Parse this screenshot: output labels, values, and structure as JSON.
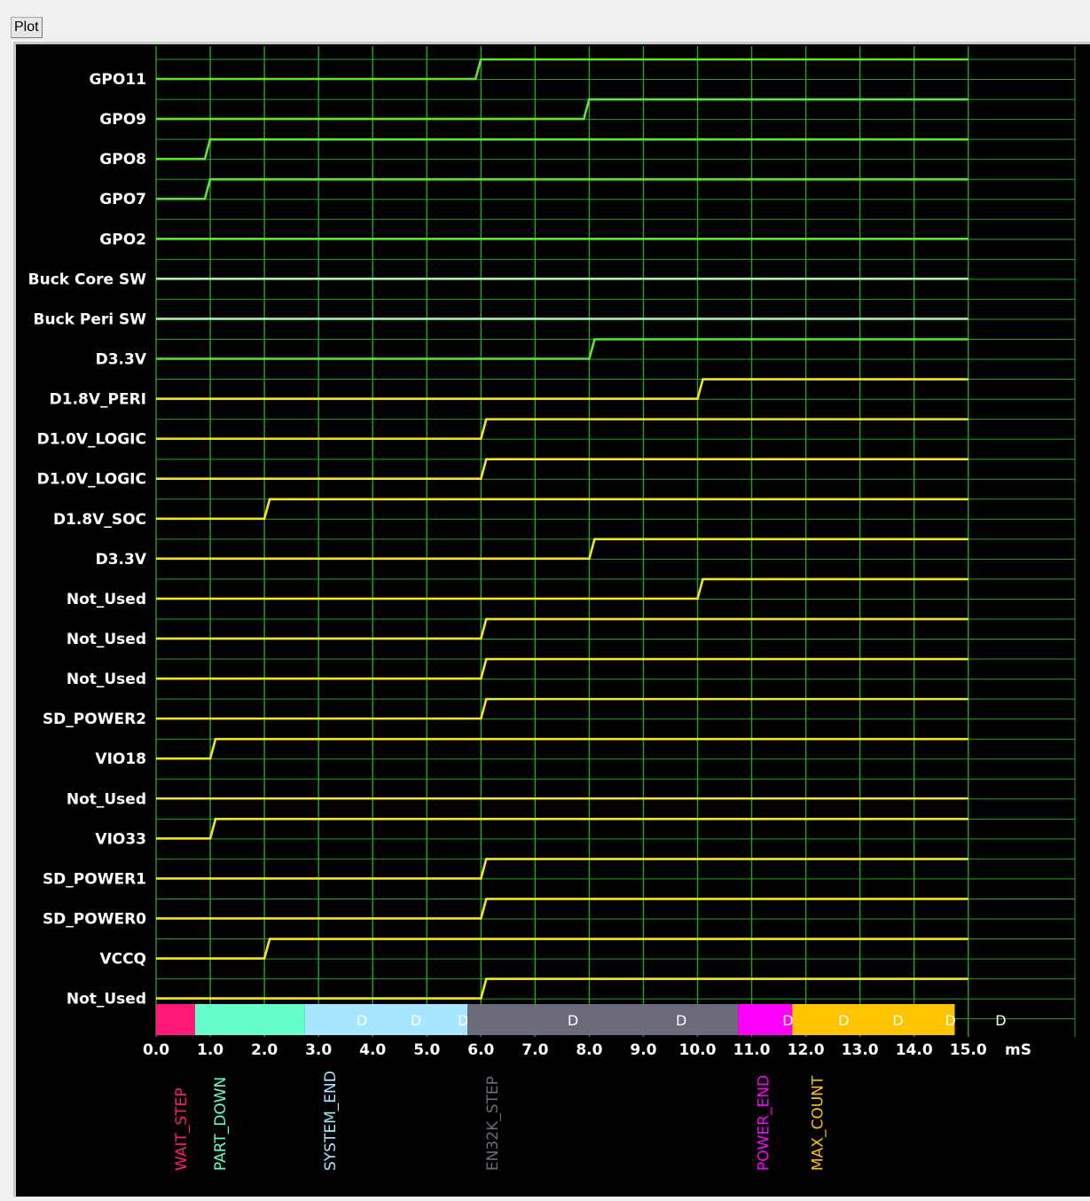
{
  "tab": {
    "label": "Plot"
  },
  "chart_data": {
    "type": "timing",
    "x": {
      "ticks": [
        0.0,
        1.0,
        2.0,
        3.0,
        4.0,
        5.0,
        6.0,
        7.0,
        8.0,
        9.0,
        10.0,
        11.0,
        12.0,
        13.0,
        14.0,
        15.0
      ],
      "unit": "mS",
      "range": [
        0,
        16
      ]
    },
    "grid": true,
    "colors": {
      "background": "#000000",
      "grid": "#1fa81f",
      "gpo": "#5ce62e",
      "buck": "#a6f2a6",
      "rail": "#f2e61f"
    },
    "signals": [
      {
        "name": "GPO11",
        "group": "gpo",
        "rise": 5.9
      },
      {
        "name": "GPO9",
        "group": "gpo",
        "rise": 7.9
      },
      {
        "name": "GPO8",
        "group": "gpo",
        "rise": 0.9
      },
      {
        "name": "GPO7",
        "group": "gpo",
        "rise": 0.9
      },
      {
        "name": "GPO2",
        "group": "gpo",
        "rise": null
      },
      {
        "name": "Buck Core SW",
        "group": "buck",
        "rise": null
      },
      {
        "name": "Buck Peri SW",
        "group": "buck",
        "rise": null
      },
      {
        "name": "D3.3V",
        "group": "gpo",
        "rise": 8.0
      },
      {
        "name": "D1.8V_PERI",
        "group": "rail",
        "rise": 10.0
      },
      {
        "name": "D1.0V_LOGIC",
        "group": "rail",
        "rise": 6.0
      },
      {
        "name": "D1.0V_LOGIC",
        "group": "rail",
        "rise": 6.0
      },
      {
        "name": "D1.8V_SOC",
        "group": "rail",
        "rise": 2.0
      },
      {
        "name": "D3.3V",
        "group": "rail",
        "rise": 8.0
      },
      {
        "name": "Not_Used",
        "group": "rail",
        "rise": 10.0
      },
      {
        "name": "Not_Used",
        "group": "rail",
        "rise": 6.0
      },
      {
        "name": "Not_Used",
        "group": "rail",
        "rise": 6.0
      },
      {
        "name": "SD_POWER2",
        "group": "rail",
        "rise": 6.0
      },
      {
        "name": "VIO18",
        "group": "rail",
        "rise": 1.0
      },
      {
        "name": "Not_Used",
        "group": "rail",
        "rise": null
      },
      {
        "name": "VIO33",
        "group": "rail",
        "rise": 1.0
      },
      {
        "name": "SD_POWER1",
        "group": "rail",
        "rise": 6.0
      },
      {
        "name": "SD_POWER0",
        "group": "rail",
        "rise": 6.0
      },
      {
        "name": "VCCQ",
        "group": "rail",
        "rise": 2.0
      },
      {
        "name": "Not_Used",
        "group": "rail",
        "rise": 6.0
      }
    ],
    "phases": [
      {
        "name": "WAIT_STEP",
        "start": 0.0,
        "end": 0.72,
        "color": "#ff1a7a",
        "marks": []
      },
      {
        "name": "PART_DOWN",
        "start": 0.72,
        "end": 2.75,
        "color": "#66ffcc",
        "marks": []
      },
      {
        "name": "SYSTEM_END",
        "start": 2.75,
        "end": 5.75,
        "color": "#a6e6ff",
        "marks": [
          3.8,
          4.8,
          5.67
        ]
      },
      {
        "name": "EN32K_STEP",
        "start": 5.75,
        "end": 10.75,
        "color": "#6b6b7a",
        "marks": [
          7.7,
          9.7
        ]
      },
      {
        "name": "POWER_END",
        "start": 10.75,
        "end": 11.75,
        "color": "#ff00ff",
        "marks": [
          11.67
        ]
      },
      {
        "name": "MAX_COUNT",
        "start": 11.75,
        "end": 14.75,
        "color": "#ffc400",
        "marks": [
          12.7,
          13.7,
          14.67
        ]
      }
    ],
    "tail_mark": {
      "label": "D",
      "at": 15.6
    },
    "mark_label": "D"
  }
}
